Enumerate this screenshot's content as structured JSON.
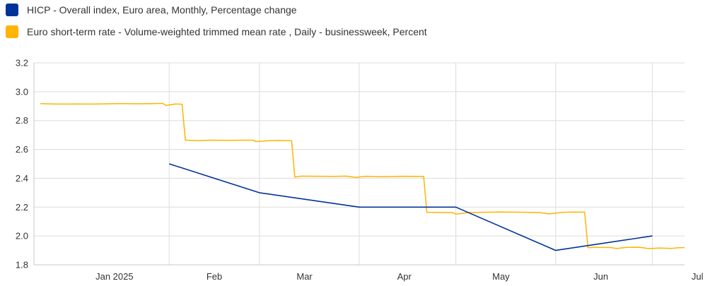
{
  "chart_data": {
    "type": "line",
    "legend_position": "top-left",
    "grid": true,
    "x_range": [
      "2024-12-21",
      "2025-07-11"
    ],
    "ylim": [
      1.8,
      3.2
    ],
    "y_ticks": [
      "3.2",
      "3.0",
      "2.8",
      "2.6",
      "2.4",
      "2.2",
      "2.0",
      "1.8"
    ],
    "x_ticks": [
      {
        "label": "Jan 2025",
        "date": "2025-01-15"
      },
      {
        "label": "Feb",
        "date": "2025-02-15"
      },
      {
        "label": "Mar",
        "date": "2025-03-15"
      },
      {
        "label": "Apr",
        "date": "2025-04-15"
      },
      {
        "label": "May",
        "date": "2025-05-15"
      },
      {
        "label": "Jun",
        "date": "2025-06-15"
      },
      {
        "label": "Jul",
        "date": "2025-07-15"
      }
    ],
    "x_gridlines": [
      "2025-02-01",
      "2025-03-01",
      "2025-04-01",
      "2025-05-01",
      "2025-06-01",
      "2025-07-01"
    ],
    "series": [
      {
        "name": "HICP - Overall index, Euro area, Monthly, Percentage change",
        "color": "#003399",
        "points": [
          [
            "2025-02-01",
            2.5
          ],
          [
            "2025-03-01",
            2.3
          ],
          [
            "2025-04-01",
            2.2
          ],
          [
            "2025-05-01",
            2.2
          ],
          [
            "2025-06-01",
            1.9
          ],
          [
            "2025-07-01",
            2.0
          ]
        ]
      },
      {
        "name": "Euro short-term rate - Volume-weighted trimmed mean rate , Daily - businessweek, Percent",
        "color": "#ffb400",
        "points": [
          [
            "2024-12-23",
            2.917
          ],
          [
            "2024-12-27",
            2.915
          ],
          [
            "2024-12-31",
            2.914
          ],
          [
            "2025-01-03",
            2.915
          ],
          [
            "2025-01-08",
            2.914
          ],
          [
            "2025-01-13",
            2.916
          ],
          [
            "2025-01-17",
            2.917
          ],
          [
            "2025-01-22",
            2.916
          ],
          [
            "2025-01-27",
            2.917
          ],
          [
            "2025-01-30",
            2.919
          ],
          [
            "2025-01-31",
            2.905
          ],
          [
            "2025-02-03",
            2.915
          ],
          [
            "2025-02-05",
            2.913
          ],
          [
            "2025-02-06",
            2.664
          ],
          [
            "2025-02-10",
            2.661
          ],
          [
            "2025-02-14",
            2.664
          ],
          [
            "2025-02-19",
            2.663
          ],
          [
            "2025-02-24",
            2.664
          ],
          [
            "2025-02-27",
            2.664
          ],
          [
            "2025-02-28",
            2.654
          ],
          [
            "2025-03-04",
            2.661
          ],
          [
            "2025-03-07",
            2.662
          ],
          [
            "2025-03-11",
            2.66
          ],
          [
            "2025-03-12",
            2.408
          ],
          [
            "2025-03-14",
            2.415
          ],
          [
            "2025-03-19",
            2.414
          ],
          [
            "2025-03-24",
            2.413
          ],
          [
            "2025-03-28",
            2.415
          ],
          [
            "2025-03-31",
            2.406
          ],
          [
            "2025-04-03",
            2.414
          ],
          [
            "2025-04-08",
            2.411
          ],
          [
            "2025-04-14",
            2.414
          ],
          [
            "2025-04-21",
            2.413
          ],
          [
            "2025-04-22",
            2.164
          ],
          [
            "2025-04-25",
            2.163
          ],
          [
            "2025-04-30",
            2.162
          ],
          [
            "2025-05-01",
            2.151
          ],
          [
            "2025-05-05",
            2.162
          ],
          [
            "2025-05-09",
            2.164
          ],
          [
            "2025-05-14",
            2.166
          ],
          [
            "2025-05-19",
            2.165
          ],
          [
            "2025-05-23",
            2.164
          ],
          [
            "2025-05-27",
            2.162
          ],
          [
            "2025-05-30",
            2.153
          ],
          [
            "2025-06-03",
            2.163
          ],
          [
            "2025-06-06",
            2.166
          ],
          [
            "2025-06-10",
            2.165
          ],
          [
            "2025-06-11",
            1.919
          ],
          [
            "2025-06-13",
            1.921
          ],
          [
            "2025-06-18",
            1.92
          ],
          [
            "2025-06-20",
            1.913
          ],
          [
            "2025-06-23",
            1.921
          ],
          [
            "2025-06-27",
            1.922
          ],
          [
            "2025-06-30",
            1.912
          ],
          [
            "2025-07-03",
            1.916
          ],
          [
            "2025-07-07",
            1.914
          ],
          [
            "2025-07-09",
            1.918
          ],
          [
            "2025-07-11",
            1.92
          ]
        ]
      }
    ]
  }
}
